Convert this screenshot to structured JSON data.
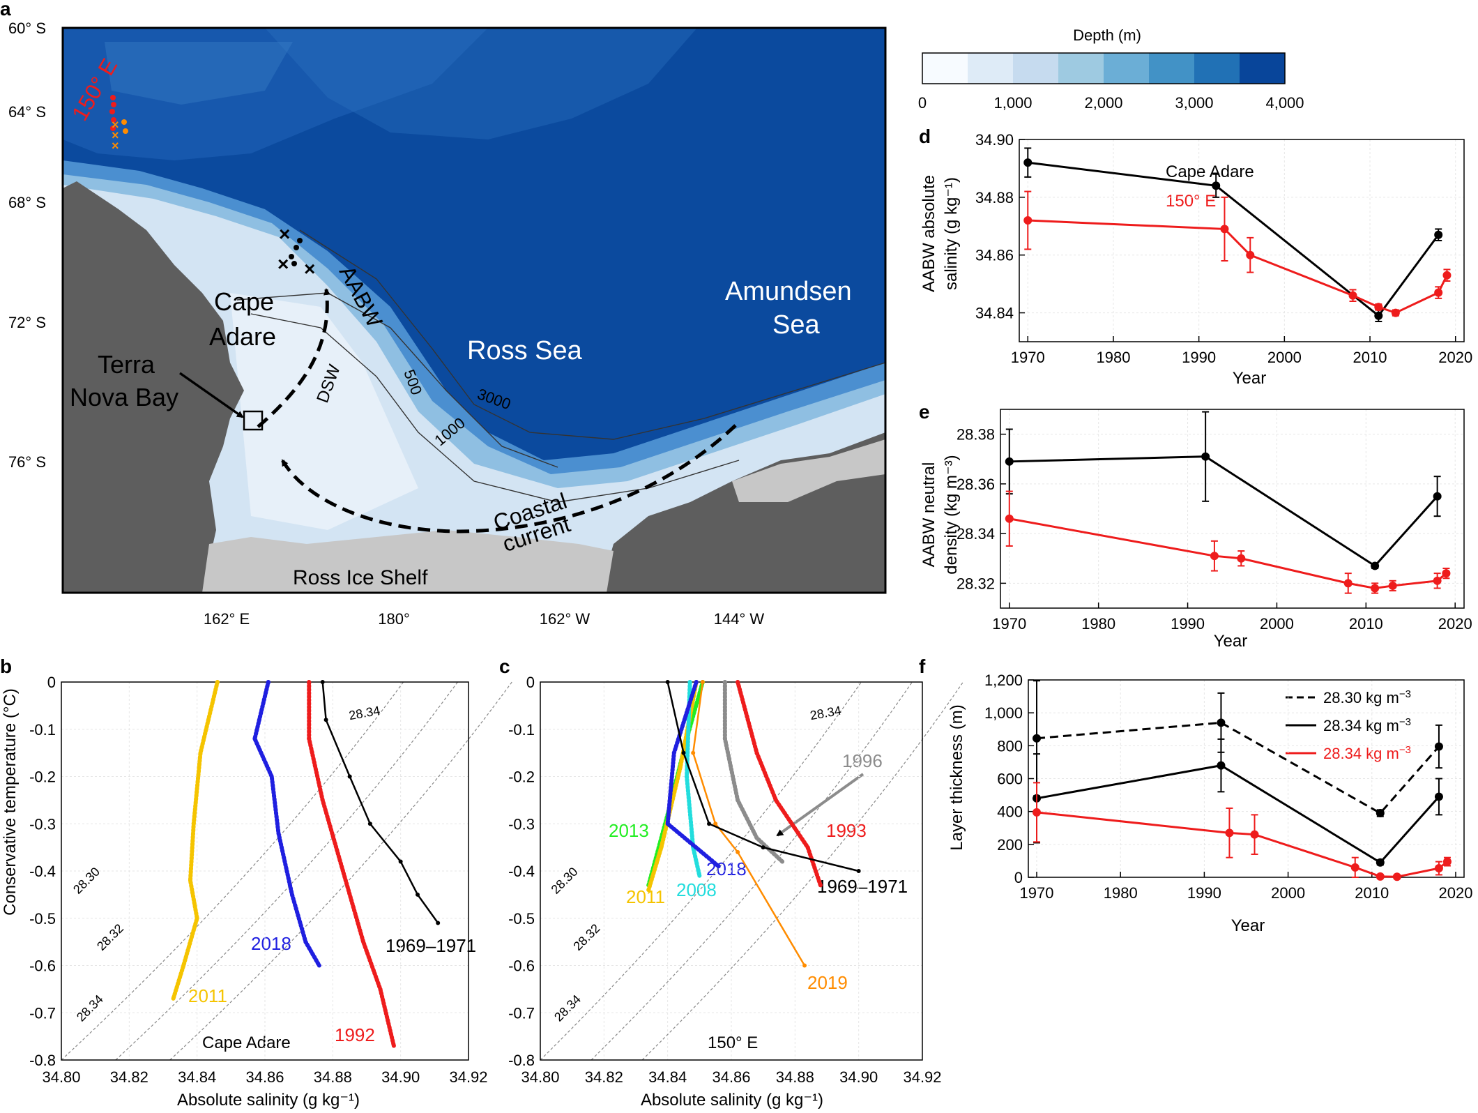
{
  "panel_letters": {
    "a": "a",
    "b": "b",
    "c": "c",
    "d": "d",
    "e": "e",
    "f": "f"
  },
  "colors": {
    "black": "#000000",
    "red": "#ee1c1c",
    "blue": "#1f1fe0",
    "gold": "#f5c400",
    "green": "#22ee22",
    "cyan": "#22dddd",
    "orange": "#ff8c00",
    "gray": "#8c8c8c",
    "land": "#5e5e5e",
    "ice": "#c7c7c7"
  },
  "map": {
    "lat_labels": [
      "60° S",
      "64° S",
      "68° S",
      "72° S",
      "76° S"
    ],
    "lon_labels": [
      "162° E",
      "180°",
      "162° W",
      "144° W"
    ],
    "labels": {
      "e150": "150° E",
      "cape": "Cape",
      "adare": "Adare",
      "terra": "Terra",
      "nova_bay": "Nova Bay",
      "aabw": "AABW",
      "dsw": "DSW",
      "ross_sea": "Ross Sea",
      "amundsen": "Amundsen",
      "sea": "Sea",
      "coastal": "Coastal",
      "current": "current",
      "ross_ice_shelf": "Ross Ice Shelf",
      "c500": "500",
      "c1000": "1000",
      "c3000": "3000"
    },
    "colorbar": {
      "title": "Depth (m)",
      "ticks": [
        "0",
        "1,000",
        "2,000",
        "3,000",
        "4,000"
      ],
      "colors": [
        "#f7fbff",
        "#deebf7",
        "#c6dbef",
        "#9ecae1",
        "#6baed6",
        "#4292c6",
        "#2171b5",
        "#08459a"
      ]
    }
  },
  "chart_data": [
    {
      "id": "d",
      "type": "line",
      "ylabel_line1": "AABW absolute",
      "ylabel_line2": "salinity (g kg⁻¹)",
      "xlabel": "Year",
      "xlim": [
        1969,
        2021
      ],
      "ylim": [
        34.83,
        34.9
      ],
      "xticks": [
        "1970",
        "1980",
        "1990",
        "2000",
        "2010",
        "2020"
      ],
      "yticks": [
        "34.84",
        "34.86",
        "34.88",
        "34.90"
      ],
      "legend": [
        {
          "name": "Cape Adare",
          "color": "#000000"
        },
        {
          "name": "150° E",
          "color": "#ee1c1c"
        }
      ],
      "series": [
        {
          "name": "Cape Adare",
          "color": "#000000",
          "x": [
            1970,
            1992,
            2011,
            2018
          ],
          "y": [
            34.892,
            34.884,
            34.839,
            34.867
          ],
          "err": [
            0.005,
            0.004,
            0.002,
            0.002
          ]
        },
        {
          "name": "150° E",
          "color": "#ee1c1c",
          "x": [
            1970,
            1993,
            1996,
            2008,
            2011,
            2013,
            2018,
            2019
          ],
          "y": [
            34.872,
            34.869,
            34.86,
            34.846,
            34.842,
            34.84,
            34.847,
            34.853
          ],
          "err": [
            0.01,
            0.011,
            0.006,
            0.002,
            0.001,
            0.001,
            0.002,
            0.002
          ]
        }
      ]
    },
    {
      "id": "e",
      "type": "line",
      "ylabel_line1": "AABW neutral",
      "ylabel_line2": "density (kg m⁻³)",
      "xlabel": "Year",
      "xlim": [
        1969,
        2021
      ],
      "ylim": [
        28.31,
        28.39
      ],
      "xticks": [
        "1970",
        "1980",
        "1990",
        "2000",
        "2010",
        "2020"
      ],
      "yticks": [
        "28.32",
        "28.34",
        "28.36",
        "28.38"
      ],
      "series": [
        {
          "name": "Cape Adare",
          "color": "#000000",
          "x": [
            1970,
            1992,
            2011,
            2018
          ],
          "y": [
            28.369,
            28.371,
            28.327,
            28.355
          ],
          "err": [
            0.013,
            0.018,
            0.001,
            0.008
          ]
        },
        {
          "name": "150° E",
          "color": "#ee1c1c",
          "x": [
            1970,
            1993,
            1996,
            2008,
            2011,
            2013,
            2018,
            2019
          ],
          "y": [
            28.346,
            28.331,
            28.33,
            28.32,
            28.318,
            28.319,
            28.321,
            28.324
          ],
          "err": [
            0.011,
            0.006,
            0.003,
            0.004,
            0.002,
            0.002,
            0.003,
            0.002
          ]
        }
      ]
    },
    {
      "id": "f",
      "type": "line",
      "ylabel_line1": "Layer thickness (m)",
      "xlabel": "Year",
      "xlim": [
        1969,
        2021
      ],
      "ylim": [
        0,
        1200
      ],
      "xticks": [
        "1970",
        "1980",
        "1990",
        "2000",
        "2010",
        "2020"
      ],
      "yticks": [
        "0",
        "200",
        "400",
        "600",
        "800",
        "1,000",
        "1,200"
      ],
      "legend": [
        {
          "label": "28.30 kg m",
          "sup": "−3",
          "color": "#000000",
          "dash": true
        },
        {
          "label": "28.34 kg m",
          "sup": "−3",
          "color": "#000000",
          "dash": false
        },
        {
          "label": "28.34 kg m",
          "sup": "−3",
          "color": "#ee1c1c",
          "dash": false
        }
      ],
      "series": [
        {
          "name": "28.30 kg m-3 Cape Adare",
          "color": "#000000",
          "dash": true,
          "x": [
            1970,
            1992,
            2011,
            2018
          ],
          "y": [
            845,
            940,
            390,
            795
          ],
          "err": [
            350,
            180,
            20,
            130
          ]
        },
        {
          "name": "28.34 kg m-3 Cape Adare",
          "color": "#000000",
          "dash": false,
          "x": [
            1970,
            1992,
            2011,
            2018
          ],
          "y": [
            480,
            680,
            90,
            490
          ],
          "err": [
            270,
            160,
            15,
            110
          ]
        },
        {
          "name": "28.34 kg m-3 150° E",
          "color": "#ee1c1c",
          "dash": false,
          "x": [
            1970,
            1993,
            1996,
            2008,
            2011,
            2013,
            2018,
            2019
          ],
          "y": [
            395,
            270,
            260,
            60,
            5,
            3,
            55,
            95
          ],
          "err": [
            180,
            150,
            120,
            60,
            10,
            10,
            40,
            25
          ]
        }
      ]
    },
    {
      "id": "b",
      "type": "scatter",
      "title": "Cape Adare",
      "xlabel": "Absolute salinity (g kg⁻¹)",
      "ylabel": "Conservative temperature (°C)",
      "xlim": [
        34.8,
        34.92
      ],
      "ylim": [
        -0.8,
        0
      ],
      "xticks": [
        "34.80",
        "34.82",
        "34.84",
        "34.86",
        "34.88",
        "34.90",
        "34.92"
      ],
      "yticks": [
        "0",
        "-0.1",
        "-0.2",
        "-0.3",
        "-0.4",
        "-0.5",
        "-0.6",
        "-0.7",
        "-0.8"
      ],
      "isopycnal_labels": [
        "28.30",
        "28.32",
        "28.34",
        "28.34"
      ],
      "series": [
        {
          "name": "2011",
          "color": "#f5c400",
          "style": "dots",
          "s": [
            34.846,
            34.841,
            34.839,
            34.838,
            34.84,
            34.836,
            34.833
          ],
          "t": [
            0,
            -0.15,
            -0.3,
            -0.42,
            -0.5,
            -0.6,
            -0.67
          ]
        },
        {
          "name": "2018",
          "color": "#1f1fe0",
          "style": "dots",
          "s": [
            34.861,
            34.857,
            34.862,
            34.864,
            34.868,
            34.872,
            34.876
          ],
          "t": [
            0,
            -0.12,
            -0.2,
            -0.32,
            -0.45,
            -0.55,
            -0.6
          ]
        },
        {
          "name": "1992",
          "color": "#ee1c1c",
          "style": "dots",
          "s": [
            34.873,
            34.873,
            34.877,
            34.883,
            34.889,
            34.894,
            34.898
          ],
          "t": [
            0,
            -0.12,
            -0.25,
            -0.4,
            -0.55,
            -0.65,
            -0.77
          ]
        },
        {
          "name": "1969–1971",
          "color": "#000000",
          "style": "lines",
          "s": [
            34.877,
            34.878,
            34.885,
            34.891,
            34.9,
            34.905,
            34.911
          ],
          "t": [
            0,
            -0.08,
            -0.2,
            -0.3,
            -0.38,
            -0.45,
            -0.51
          ]
        }
      ],
      "labels": [
        {
          "text": "2011",
          "color": "#f5c400"
        },
        {
          "text": "2018",
          "color": "#1f1fe0"
        },
        {
          "text": "1992",
          "color": "#ee1c1c"
        },
        {
          "text": "1969–1971",
          "color": "#000000"
        }
      ]
    },
    {
      "id": "c",
      "type": "scatter",
      "title": "150° E",
      "xlabel": "Absolute salinity (g kg⁻¹)",
      "xlim": [
        34.8,
        34.92
      ],
      "ylim": [
        -0.8,
        0
      ],
      "xticks": [
        "34.80",
        "34.82",
        "34.84",
        "34.86",
        "34.88",
        "34.90",
        "34.92"
      ],
      "yticks": [
        "0",
        "-0.1",
        "-0.2",
        "-0.3",
        "-0.4",
        "-0.5",
        "-0.6",
        "-0.7",
        "-0.8"
      ],
      "isopycnal_labels": [
        "28.30",
        "28.32",
        "28.34",
        "28.34"
      ],
      "series": [
        {
          "name": "2013",
          "color": "#22ee22",
          "s": [
            34.851,
            34.846,
            34.84,
            34.834
          ],
          "t": [
            0,
            -0.12,
            -0.28,
            -0.43
          ]
        },
        {
          "name": "2011",
          "color": "#f5c400",
          "s": [
            34.849,
            34.844,
            34.838,
            34.834
          ],
          "t": [
            0,
            -0.18,
            -0.35,
            -0.44
          ]
        },
        {
          "name": "2008",
          "color": "#22dddd",
          "s": [
            34.847,
            34.846,
            34.848,
            34.85
          ],
          "t": [
            0,
            -0.2,
            -0.35,
            -0.41
          ]
        },
        {
          "name": "2018",
          "color": "#1f1fe0",
          "s": [
            34.849,
            34.842,
            34.84,
            34.856
          ],
          "t": [
            0,
            -0.15,
            -0.3,
            -0.39
          ]
        },
        {
          "name": "2019",
          "color": "#ff8c00",
          "s": [
            34.851,
            34.848,
            34.855,
            34.862,
            34.883
          ],
          "t": [
            0,
            -0.15,
            -0.3,
            -0.36,
            -0.6
          ]
        },
        {
          "name": "1996",
          "color": "#8c8c8c",
          "s": [
            34.858,
            34.858,
            34.862,
            34.868,
            34.876
          ],
          "t": [
            0,
            -0.12,
            -0.25,
            -0.33,
            -0.38
          ]
        },
        {
          "name": "1993",
          "color": "#ee1c1c",
          "s": [
            34.862,
            34.868,
            34.874,
            34.884,
            34.888
          ],
          "t": [
            0,
            -0.15,
            -0.25,
            -0.35,
            -0.43
          ]
        },
        {
          "name": "1969–1971",
          "color": "#000000",
          "s": [
            34.84,
            34.845,
            34.853,
            34.87,
            34.9
          ],
          "t": [
            0,
            -0.15,
            -0.3,
            -0.35,
            -0.4
          ]
        }
      ],
      "labels": [
        {
          "text": "2013",
          "color": "#22ee22"
        },
        {
          "text": "2011",
          "color": "#f5c400"
        },
        {
          "text": "2008",
          "color": "#22dddd"
        },
        {
          "text": "2018",
          "color": "#1f1fe0"
        },
        {
          "text": "1996",
          "color": "#8c8c8c"
        },
        {
          "text": "1993",
          "color": "#ee1c1c"
        },
        {
          "text": "1969–1971",
          "color": "#000000"
        },
        {
          "text": "2019",
          "color": "#ff8c00"
        }
      ]
    }
  ]
}
